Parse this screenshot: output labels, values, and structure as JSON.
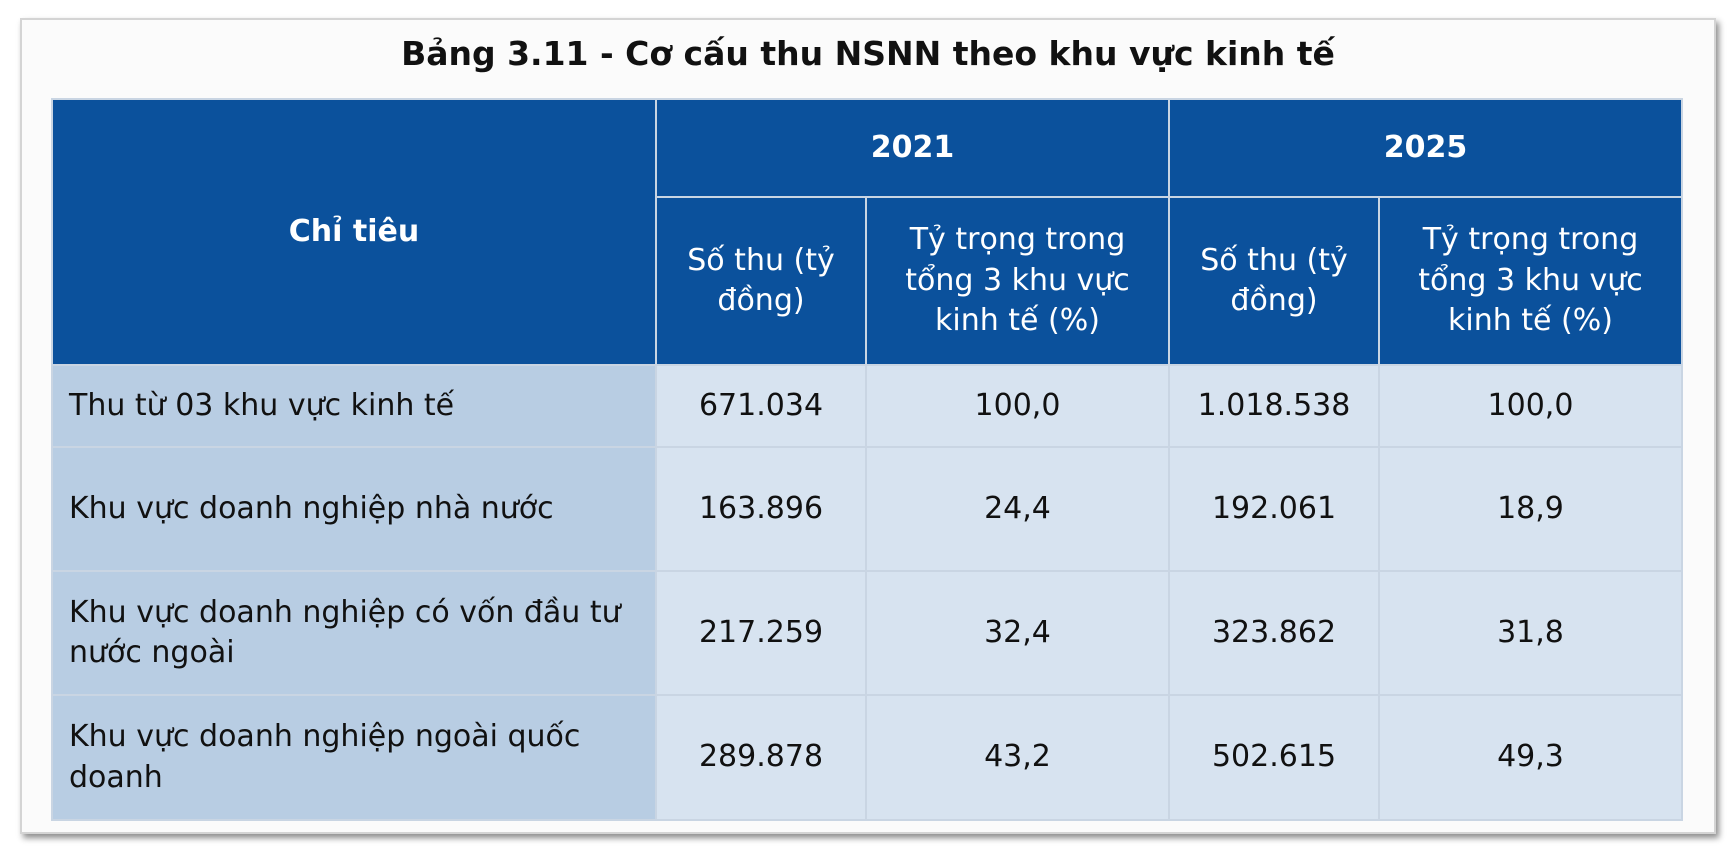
{
  "title": "Bảng 3.11 - Cơ cấu thu NSNN theo khu vực kinh tế",
  "table": {
    "header": {
      "indicator": "Chỉ tiêu",
      "years": [
        "2021",
        "2025"
      ],
      "subheaders": [
        "Số thu (tỷ đồng)",
        "Tỷ trọng trong tổng 3 khu vực kinh tế (%)",
        "Số thu (tỷ đồng)",
        "Tỷ trọng trong tổng 3 khu vực kinh tế (%)"
      ]
    },
    "rows": [
      [
        "Thu từ 03 khu vực kinh tế",
        "671.034",
        "100,0",
        "1.018.538",
        "100,0"
      ],
      [
        "Khu vực doanh nghiệp nhà nước",
        "163.896",
        "24,4",
        "192.061",
        "18,9"
      ],
      [
        "Khu vực doanh nghiệp có vốn đầu tư nước ngoài",
        "217.259",
        "32,4",
        "323.862",
        "31,8"
      ],
      [
        "Khu vực doanh nghiệp ngoài quốc doanh",
        "289.878",
        "43,2",
        "502.615",
        "49,3"
      ]
    ]
  }
}
